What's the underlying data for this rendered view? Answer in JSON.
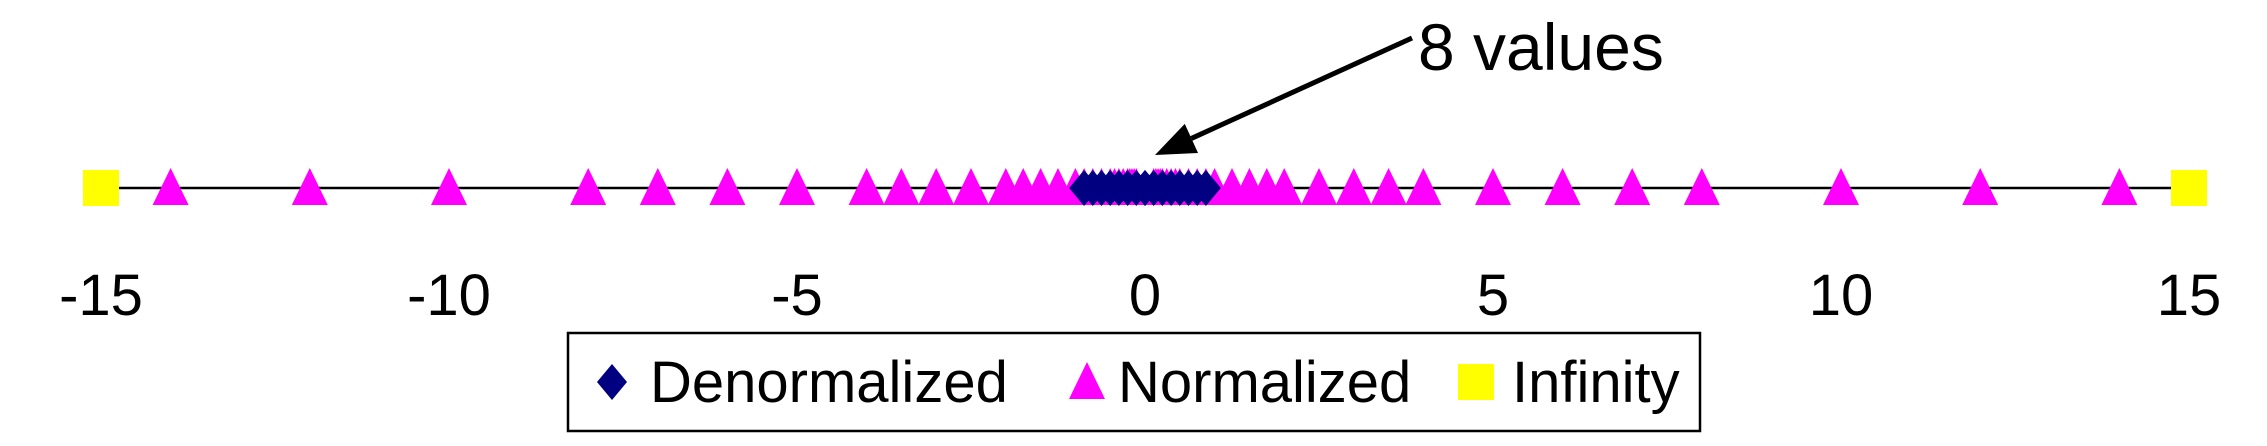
{
  "chart_data": {
    "type": "scatter",
    "title": "",
    "xlabel": "",
    "ylabel": "",
    "xlim": [
      -15,
      15
    ],
    "xticks": [
      "-15",
      "-10",
      "-5",
      "0",
      "5",
      "10",
      "15"
    ],
    "grid": false,
    "legend_position": "bottom-center",
    "annotation": {
      "text": "8 values",
      "points_to": 0
    },
    "series": [
      {
        "name": "Denormalized",
        "marker": "diamond",
        "color": "#000080",
        "values": [
          -0.875,
          -0.75,
          -0.625,
          -0.5,
          -0.375,
          -0.25,
          -0.125,
          0,
          0,
          0.125,
          0.25,
          0.375,
          0.5,
          0.625,
          0.75,
          0.875
        ]
      },
      {
        "name": "Normalized",
        "marker": "triangle",
        "color": "#ff00ff",
        "values": [
          -14,
          -12,
          -10,
          -8,
          -7,
          -6,
          -5,
          -4,
          -3.5,
          -3,
          -2.5,
          -2,
          -1.75,
          -1.5,
          -1.25,
          -1,
          -0.875,
          -0.75,
          -0.625,
          -0.5,
          -0.4375,
          -0.375,
          -0.3125,
          -0.25,
          -0.21875,
          -0.1875,
          -0.15625,
          -0.125,
          0.125,
          0.15625,
          0.1875,
          0.21875,
          0.25,
          0.3125,
          0.375,
          0.4375,
          0.5,
          0.625,
          0.75,
          0.875,
          1,
          1.25,
          1.5,
          1.75,
          2,
          2.5,
          3,
          3.5,
          4,
          5,
          6,
          7,
          8,
          10,
          12,
          14
        ]
      },
      {
        "name": "Infinity",
        "marker": "square",
        "color": "#ffff00",
        "values": [
          -15,
          15
        ]
      }
    ]
  }
}
